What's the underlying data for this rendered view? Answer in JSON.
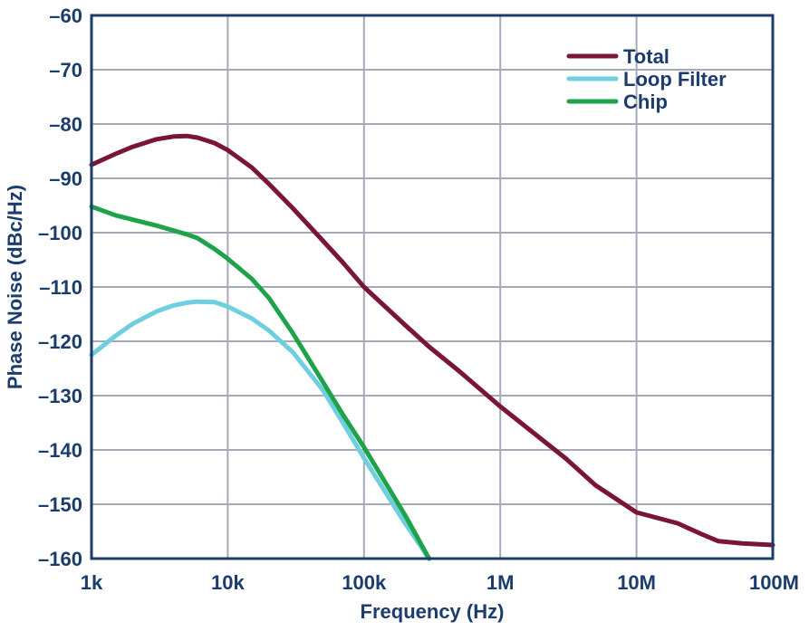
{
  "chart_data": {
    "type": "line",
    "title": "",
    "xlabel": "Frequency (Hz)",
    "ylabel": "Phase Noise (dBc/Hz)",
    "xscale": "log",
    "xlim": [
      1000,
      100000000
    ],
    "ylim": [
      -160,
      -60
    ],
    "x_ticks": [
      {
        "value": 1000,
        "label": "1k"
      },
      {
        "value": 10000,
        "label": "10k"
      },
      {
        "value": 100000,
        "label": "100k"
      },
      {
        "value": 1000000,
        "label": "1M"
      },
      {
        "value": 10000000,
        "label": "10M"
      },
      {
        "value": 100000000,
        "label": "100M"
      }
    ],
    "y_ticks": [
      {
        "value": -60,
        "label": "–60"
      },
      {
        "value": -70,
        "label": "–70"
      },
      {
        "value": -80,
        "label": "–80"
      },
      {
        "value": -90,
        "label": "–90"
      },
      {
        "value": -100,
        "label": "–100"
      },
      {
        "value": -110,
        "label": "–110"
      },
      {
        "value": -120,
        "label": "–120"
      },
      {
        "value": -130,
        "label": "–130"
      },
      {
        "value": -140,
        "label": "–140"
      },
      {
        "value": -150,
        "label": "–150"
      },
      {
        "value": -160,
        "label": "–160"
      }
    ],
    "grid": true,
    "legend_position": "top-right",
    "series": [
      {
        "name": "Total",
        "color": "#7a1535",
        "x": [
          1000,
          1500,
          2000,
          3000,
          4000,
          5000,
          6000,
          8000,
          10000,
          15000,
          20000,
          30000,
          50000,
          70000,
          100000,
          200000,
          300000,
          500000,
          1000000,
          2000000,
          3000000,
          5000000,
          10000000,
          20000000,
          30000000,
          40000000,
          60000000,
          100000000
        ],
        "y": [
          -87.5,
          -85.5,
          -84.2,
          -82.8,
          -82.3,
          -82.2,
          -82.5,
          -83.5,
          -84.8,
          -88,
          -91,
          -95.5,
          -101.5,
          -105.5,
          -110,
          -117,
          -121,
          -125.5,
          -132,
          -138,
          -141.5,
          -146.5,
          -151.5,
          -153.5,
          -155.5,
          -156.8,
          -157.2,
          -157.5
        ]
      },
      {
        "name": "Loop Filter",
        "color": "#6ecfdf",
        "x": [
          1000,
          1500,
          2000,
          3000,
          4000,
          5000,
          6000,
          8000,
          10000,
          15000,
          20000,
          30000,
          50000,
          70000,
          100000,
          200000,
          300000
        ],
        "y": [
          -122.5,
          -119,
          -116.8,
          -114.5,
          -113.4,
          -112.9,
          -112.7,
          -112.8,
          -113.6,
          -115.8,
          -118,
          -122,
          -129,
          -135,
          -141.5,
          -153.5,
          -160
        ]
      },
      {
        "name": "Chip",
        "color": "#1fa34a",
        "x": [
          1000,
          1500,
          2000,
          3000,
          4000,
          5000,
          6000,
          8000,
          10000,
          15000,
          20000,
          30000,
          50000,
          70000,
          100000,
          200000,
          300000
        ],
        "y": [
          -95.2,
          -96.8,
          -97.6,
          -98.7,
          -99.6,
          -100.3,
          -101,
          -103,
          -104.8,
          -108.5,
          -112,
          -118.5,
          -127.5,
          -133.5,
          -139.5,
          -152,
          -160
        ]
      }
    ]
  }
}
